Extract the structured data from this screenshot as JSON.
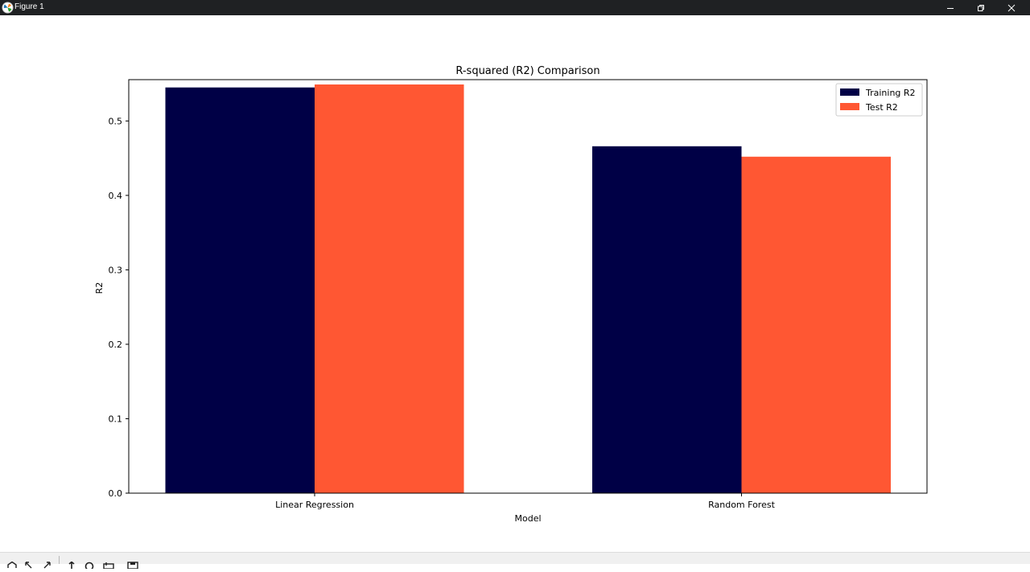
{
  "window": {
    "title": "Figure 1"
  },
  "toolbar": {
    "tools": [
      "home-icon",
      "back-icon",
      "forward-icon",
      "pan-icon",
      "zoom-icon",
      "configure-subplots-icon",
      "save-icon"
    ]
  },
  "chart_data": {
    "type": "bar",
    "title": "R-squared (R2) Comparison",
    "xlabel": "Model",
    "ylabel": "R2",
    "categories": [
      "Linear Regression",
      "Random Forest"
    ],
    "series": [
      {
        "name": "Training R2",
        "values": [
          0.545,
          0.466
        ],
        "color": "#000046"
      },
      {
        "name": "Test R2",
        "values": [
          0.549,
          0.452
        ],
        "color": "#ff5733"
      }
    ],
    "ylim": [
      0,
      0.5555
    ],
    "yticks": [
      "0.0",
      "0.1",
      "0.2",
      "0.3",
      "0.4",
      "0.5"
    ],
    "legend": "top-right",
    "grid": false
  }
}
